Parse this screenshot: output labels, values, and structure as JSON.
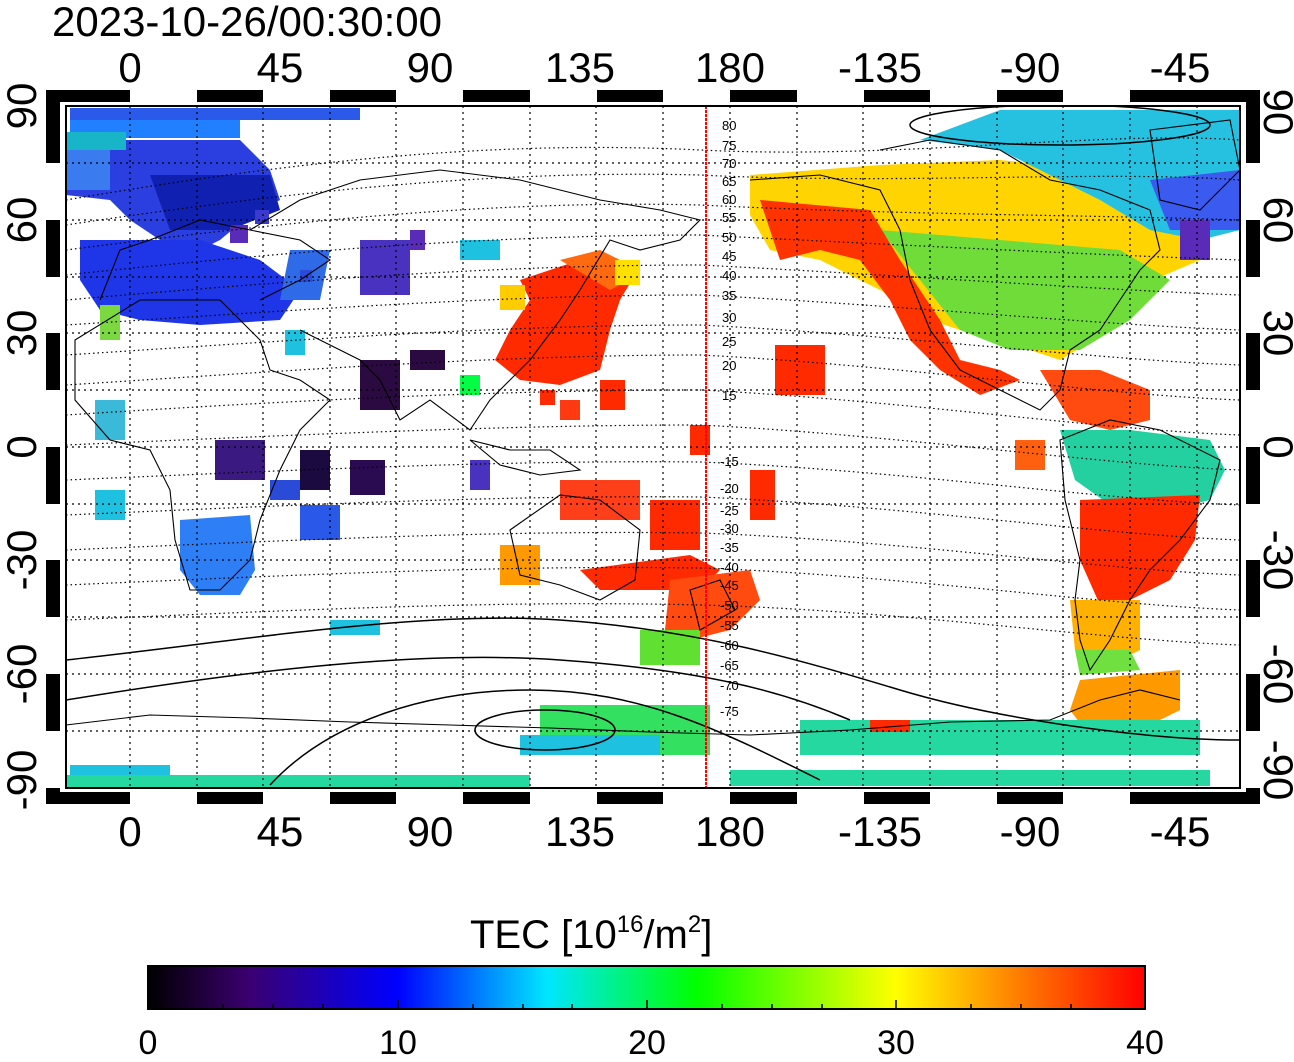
{
  "timestamp": "2023-10-26/00:30:00",
  "top_lon_labels": [
    "0",
    "45",
    "90",
    "135",
    "180",
    "-135",
    "-90",
    "-45"
  ],
  "bottom_lon_labels": [
    "0",
    "45",
    "90",
    "135",
    "180",
    "-135",
    "-90",
    "-45"
  ],
  "left_lat_labels": [
    "90",
    "60",
    "30",
    "0",
    "-30",
    "-60",
    "-90"
  ],
  "right_lat_labels": [
    "90",
    "60",
    "30",
    "0",
    "-30",
    "-60",
    "-90"
  ],
  "colorbar": {
    "title_main": "TEC  [10",
    "title_exp1": "16",
    "title_mid": "/m",
    "title_exp2": "2",
    "title_end": "]",
    "tick_labels": [
      "0",
      "10",
      "20",
      "30",
      "40"
    ],
    "stops": [
      "#000000",
      "#3a006e",
      "#0000ff",
      "#00e6ff",
      "#00ff00",
      "#ffff00",
      "#ff8000",
      "#ff0000"
    ]
  },
  "north_contour_labels": [
    "80",
    "75",
    "70",
    "65",
    "60",
    "55",
    "50",
    "45",
    "40",
    "35",
    "30",
    "25",
    "20",
    "15"
  ],
  "south_contour_labels": [
    "-15",
    "-20",
    "-25",
    "-30",
    "-35",
    "-40",
    "-45",
    "-50",
    "-55",
    "-60",
    "-65",
    "-70",
    "-75"
  ],
  "legend_colors": {
    "meridian": "#ff0000",
    "dots": "#000000"
  }
}
